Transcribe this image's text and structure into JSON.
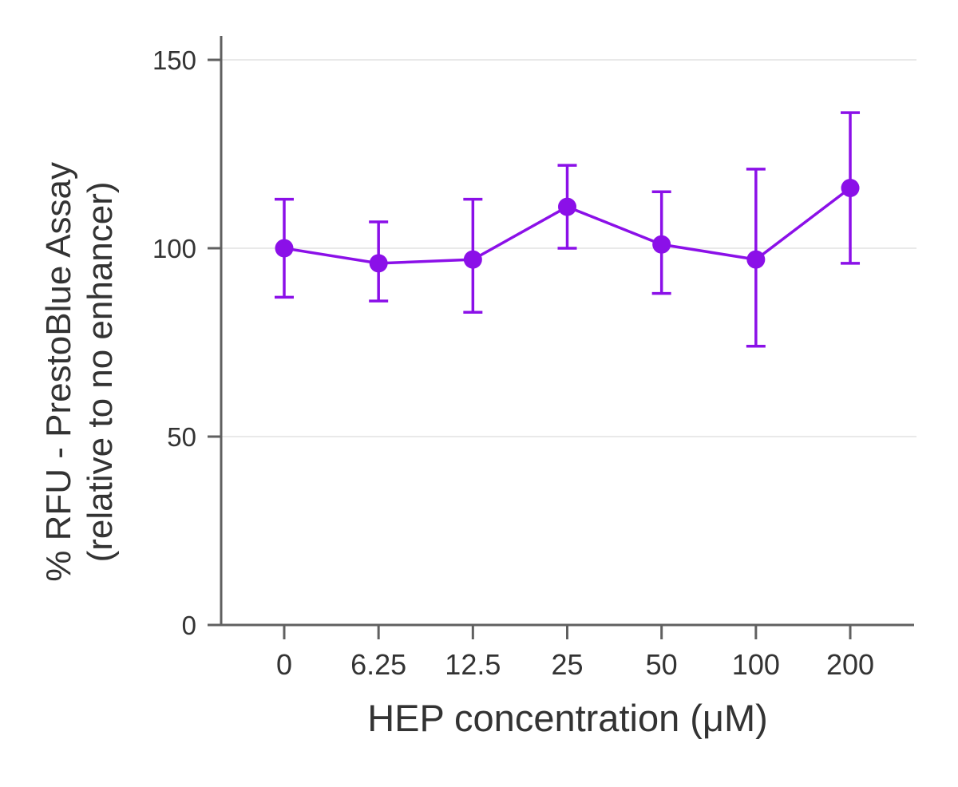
{
  "chart_data": {
    "type": "line",
    "title": "",
    "xlabel": "HEP concentration (μM)",
    "ylabel_line1": "% RFU - PrestoBlue Assay",
    "ylabel_line2": "(relative to no enhancer)",
    "categories": [
      "0",
      "6.25",
      "12.5",
      "25",
      "50",
      "100",
      "200"
    ],
    "series": [
      {
        "values": [
          100,
          96,
          97,
          111,
          101,
          97,
          116
        ],
        "error_upper": [
          113,
          107,
          113,
          122,
          115,
          121,
          136
        ],
        "error_lower": [
          87,
          86,
          83,
          100,
          88,
          74,
          96
        ]
      }
    ],
    "y_ticks": [
      0,
      50,
      100,
      150
    ],
    "ylim": [
      0,
      150
    ],
    "grid": "horizontal",
    "legend": "none",
    "marker": "circle",
    "error_bars": "vertical-capped",
    "colors": {
      "series": "#8b10e8",
      "axis": "#606060",
      "grid": "#e9e9e9",
      "text": "#333333",
      "background": "#ffffff"
    }
  }
}
